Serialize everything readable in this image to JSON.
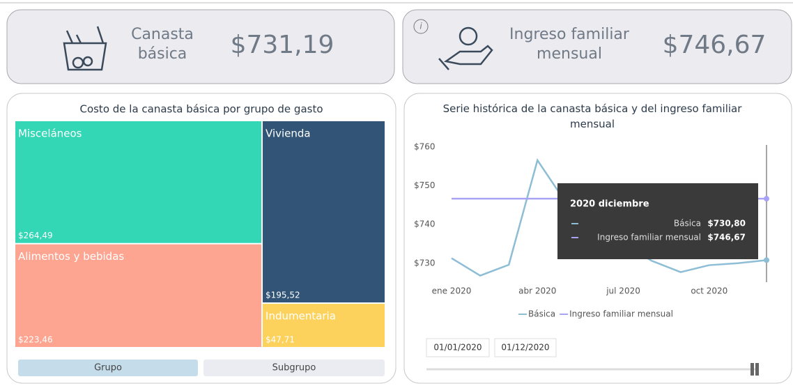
{
  "cards": [
    {
      "label": "Canasta básica",
      "value": "$731,19"
    },
    {
      "label": "Ingreso familiar mensual",
      "value": "$746,67"
    }
  ],
  "chart_data": [
    {
      "type": "treemap",
      "title": "Costo de la canasta básica por grupo de gasto",
      "categories": [
        "Misceláneos",
        "Alimentos y bebidas",
        "Vivienda",
        "Indumentaria"
      ],
      "values": [
        264.49,
        223.46,
        195.52,
        47.71
      ],
      "value_labels": [
        "$264,49",
        "$223,46",
        "$195,52",
        "$47,71"
      ],
      "colors": [
        "#33d6b5",
        "#fda591",
        "#325577",
        "#fdd25c"
      ]
    },
    {
      "type": "line",
      "title": "Serie histórica de la canasta básica y del ingreso familiar mensual",
      "categories": [
        "ene 2020",
        null,
        null,
        "abr 2020",
        null,
        null,
        "jul 2020",
        null,
        null,
        "oct 2020",
        null,
        null
      ],
      "series": [
        {
          "name": "Básica",
          "color": "#8ebdd6",
          "values": [
            731.3,
            726.8,
            729.6,
            756.6,
            745.6,
            739.5,
            735.0,
            730.6,
            727.7,
            729.5,
            730.0,
            730.8
          ]
        },
        {
          "name": "Ingreso familiar mensual",
          "color": "#a9a3f5",
          "values": [
            746.67,
            746.67,
            746.67,
            746.67,
            746.67,
            746.67,
            746.67,
            746.67,
            746.67,
            746.67,
            746.67,
            746.67
          ]
        }
      ],
      "ylim": [
        726,
        762
      ],
      "yticks": [
        {
          "value": 730,
          "label": "$730"
        },
        {
          "value": 740,
          "label": "$740"
        },
        {
          "value": 750,
          "label": "$750"
        },
        {
          "value": 760,
          "label": "$760"
        }
      ],
      "grid": false,
      "legend": "bottom"
    }
  ],
  "buttons": [
    "Grupo",
    "Subgrupo"
  ],
  "tooltip": {
    "title": "2020 diciembre",
    "rows": [
      {
        "name": "Básica",
        "value": "$730,80"
      },
      {
        "name": "Ingreso familiar mensual",
        "value": "$746,67"
      }
    ]
  },
  "date_range": [
    "01/01/2020",
    "01/12/2020"
  ]
}
